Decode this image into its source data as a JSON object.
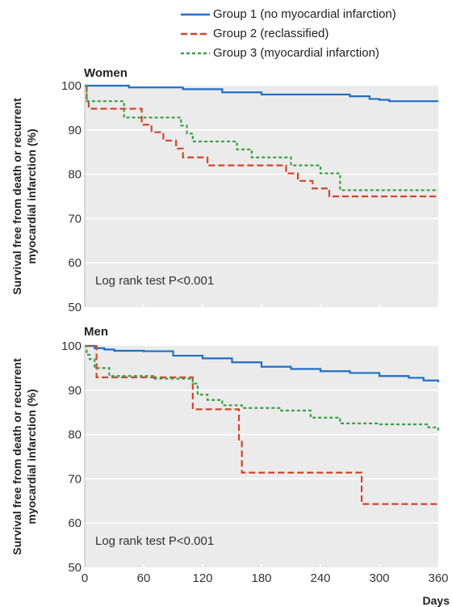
{
  "legend_colors": {
    "group1": "#1f6fc5",
    "group2": "#d2452b",
    "group3": "#3aa04a"
  },
  "chart_data": [
    {
      "type": "line",
      "panel": "Women",
      "title": "Women",
      "ylabel_line1": "Survival free from death or recurrent",
      "ylabel_line2": "myocardial infarction (%)",
      "xlabel": "",
      "ylim": [
        50,
        100
      ],
      "xlim": [
        0,
        360
      ],
      "yticks": [
        50,
        60,
        70,
        80,
        90,
        100
      ],
      "xticks": [
        0,
        60,
        120,
        180,
        240,
        300,
        360
      ],
      "annotation": "Log rank test P<0.001",
      "series": [
        {
          "name": "Group 1 (no myocardial infarction)",
          "color": "#1f6fc5",
          "dash": "solid",
          "x": [
            0,
            45,
            100,
            140,
            180,
            270,
            290,
            300,
            310,
            360
          ],
          "y": [
            100,
            99.6,
            99.2,
            98.5,
            98.0,
            97.6,
            97.0,
            96.8,
            96.5,
            96.5
          ]
        },
        {
          "name": "Group 2 (reclassified)",
          "color": "#d2452b",
          "dash": "dashed",
          "x": [
            0,
            2,
            4,
            20,
            40,
            58,
            68,
            80,
            93,
            100,
            108,
            125,
            205,
            217,
            232,
            249,
            360
          ],
          "y": [
            100,
            96.5,
            94.8,
            94.8,
            94.8,
            91.2,
            89.5,
            87.6,
            85.8,
            83.8,
            83.8,
            82.0,
            80.2,
            78.5,
            76.8,
            75.0,
            75.0
          ]
        },
        {
          "name": "Group 3 (myocardial infarction)",
          "color": "#3aa04a",
          "dash": "dotted",
          "x": [
            0,
            2,
            30,
            40,
            60,
            80,
            98,
            104,
            110,
            130,
            155,
            170,
            190,
            210,
            225,
            240,
            252,
            260,
            360
          ],
          "y": [
            100,
            96.5,
            96.5,
            92.8,
            92.8,
            92.8,
            91.0,
            89.2,
            87.4,
            87.4,
            85.6,
            83.8,
            83.8,
            82.0,
            82.0,
            80.2,
            80.2,
            76.4,
            76.4
          ]
        }
      ]
    },
    {
      "type": "line",
      "panel": "Men",
      "title": "Men",
      "ylabel_line1": "Survival free from death or recurrent",
      "ylabel_line2": "myocardial infarction (%)",
      "xlabel": "Days",
      "ylim": [
        50,
        100
      ],
      "xlim": [
        0,
        360
      ],
      "yticks": [
        50,
        60,
        70,
        80,
        90,
        100
      ],
      "xticks": [
        0,
        60,
        120,
        180,
        240,
        300,
        360
      ],
      "annotation": "Log rank test P<0.001",
      "series": [
        {
          "name": "Group 1 (no myocardial infarction)",
          "color": "#1f6fc5",
          "dash": "solid",
          "x": [
            0,
            10,
            20,
            30,
            60,
            90,
            120,
            150,
            180,
            210,
            240,
            270,
            300,
            330,
            345,
            360
          ],
          "y": [
            100,
            99.5,
            99.2,
            98.9,
            98.8,
            97.8,
            97.2,
            96.3,
            95.3,
            94.8,
            94.3,
            93.9,
            93.2,
            92.8,
            92.2,
            91.8
          ]
        },
        {
          "name": "Group 2 (reclassified)",
          "color": "#d2452b",
          "dash": "dashed",
          "x": [
            0,
            8,
            12,
            45,
            108,
            110,
            155,
            157,
            160,
            200,
            278,
            282,
            360
          ],
          "y": [
            100,
            100,
            92.9,
            92.9,
            92.9,
            85.7,
            85.7,
            78.6,
            71.4,
            71.4,
            71.4,
            64.3,
            64.3
          ]
        },
        {
          "name": "Group 3 (myocardial infarction)",
          "color": "#3aa04a",
          "dash": "dotted",
          "x": [
            0,
            2,
            5,
            10,
            25,
            40,
            70,
            110,
            115,
            125,
            140,
            160,
            180,
            200,
            230,
            260,
            300,
            350,
            360
          ],
          "y": [
            100,
            98.0,
            97.0,
            95.0,
            93.2,
            93.2,
            92.6,
            91.5,
            89.0,
            87.8,
            86.6,
            86.0,
            86.0,
            85.4,
            83.8,
            82.5,
            82.3,
            81.6,
            80.9
          ]
        }
      ]
    }
  ]
}
